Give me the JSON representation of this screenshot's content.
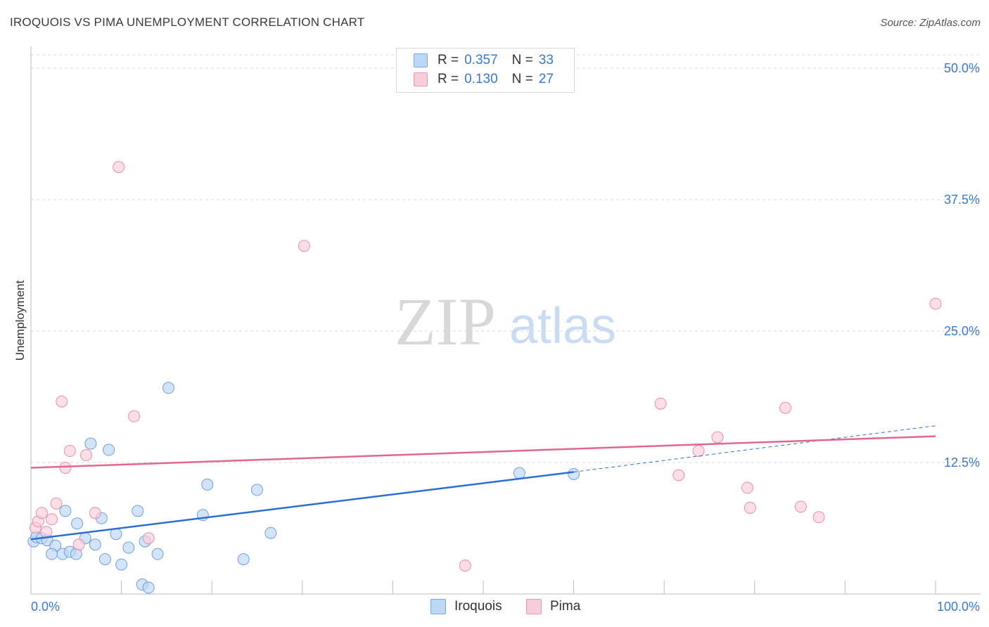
{
  "header": {
    "title": "IROQUOIS VS PIMA UNEMPLOYMENT CORRELATION CHART",
    "source": "Source: ZipAtlas.com"
  },
  "watermark": {
    "zip": "ZIP",
    "atlas": "atlas"
  },
  "legend_top": {
    "rows": [
      {
        "r_label": "R =",
        "r_value": "0.357",
        "n_label": "N =",
        "n_value": "33"
      },
      {
        "r_label": "R =",
        "r_value": "0.130",
        "n_label": "N =",
        "n_value": "27"
      }
    ]
  },
  "legend_bottom": {
    "items": [
      "Iroquois",
      "Pima"
    ]
  },
  "colors": {
    "iroquois_fill": "#bcd6f5",
    "iroquois_stroke": "#6f9fe0",
    "iroquois_line": "#2b6fd6",
    "pima_fill": "#f9ccd9",
    "pima_stroke": "#e78fab",
    "pima_line": "#e2668f",
    "tick_label": "#3b78d0",
    "grid": "#d9d9d9"
  },
  "chart_data": {
    "type": "scatter",
    "title": "IROQUOIS VS PIMA UNEMPLOYMENT CORRELATION CHART",
    "xlabel": "",
    "ylabel": "Unemployment",
    "xlim": [
      0,
      100
    ],
    "ylim": [
      0,
      50
    ],
    "x_tick_labels": [
      "0.0%",
      "100.0%"
    ],
    "y_ticks": [
      12.5,
      25.0,
      37.5,
      50.0
    ],
    "y_tick_labels": [
      "12.5%",
      "25.0%",
      "37.5%",
      "50.0%"
    ],
    "grid": true,
    "series": [
      {
        "name": "Iroquois",
        "r": 0.357,
        "n": 33,
        "points": [
          [
            0.3,
            5.0
          ],
          [
            0.6,
            5.4
          ],
          [
            1.2,
            5.3
          ],
          [
            1.8,
            5.1
          ],
          [
            2.7,
            4.6
          ],
          [
            2.3,
            3.8
          ],
          [
            3.5,
            3.8
          ],
          [
            3.8,
            7.9
          ],
          [
            4.3,
            4.0
          ],
          [
            5.0,
            3.8
          ],
          [
            5.1,
            6.7
          ],
          [
            6.0,
            5.3
          ],
          [
            6.6,
            14.3
          ],
          [
            7.1,
            4.7
          ],
          [
            7.8,
            7.2
          ],
          [
            8.2,
            3.3
          ],
          [
            8.6,
            13.7
          ],
          [
            9.4,
            5.7
          ],
          [
            10.0,
            2.8
          ],
          [
            10.8,
            4.4
          ],
          [
            11.8,
            7.9
          ],
          [
            12.3,
            0.9
          ],
          [
            12.6,
            5.0
          ],
          [
            13.0,
            0.6
          ],
          [
            14.0,
            3.8
          ],
          [
            15.2,
            19.6
          ],
          [
            19.0,
            7.5
          ],
          [
            19.5,
            10.4
          ],
          [
            23.5,
            3.3
          ],
          [
            25.0,
            9.9
          ],
          [
            26.5,
            5.8
          ],
          [
            54.0,
            11.5
          ],
          [
            60.0,
            11.4
          ]
        ],
        "trend": {
          "x0": 0,
          "y0": 5.2,
          "x1": 60,
          "y1": 11.6,
          "dashed_to_x": 100,
          "dashed_to_y": 16.0
        }
      },
      {
        "name": "Pima",
        "r": 0.13,
        "n": 27,
        "points": [
          [
            0.5,
            6.3
          ],
          [
            0.8,
            6.9
          ],
          [
            1.2,
            7.7
          ],
          [
            1.7,
            5.9
          ],
          [
            2.3,
            7.1
          ],
          [
            2.8,
            8.6
          ],
          [
            3.4,
            18.3
          ],
          [
            3.8,
            12.0
          ],
          [
            4.3,
            13.6
          ],
          [
            5.3,
            4.7
          ],
          [
            6.1,
            13.2
          ],
          [
            7.1,
            7.7
          ],
          [
            9.7,
            40.6
          ],
          [
            11.4,
            16.9
          ],
          [
            13.0,
            5.3
          ],
          [
            30.2,
            33.1
          ],
          [
            48.0,
            2.7
          ],
          [
            69.6,
            18.1
          ],
          [
            71.6,
            11.3
          ],
          [
            73.8,
            13.6
          ],
          [
            75.9,
            14.9
          ],
          [
            79.2,
            10.1
          ],
          [
            79.5,
            8.2
          ],
          [
            83.4,
            17.7
          ],
          [
            85.1,
            8.3
          ],
          [
            87.1,
            7.3
          ],
          [
            100.0,
            27.6
          ]
        ],
        "trend": {
          "x0": 0,
          "y0": 12.0,
          "x1": 100,
          "y1": 15.0
        }
      }
    ]
  }
}
